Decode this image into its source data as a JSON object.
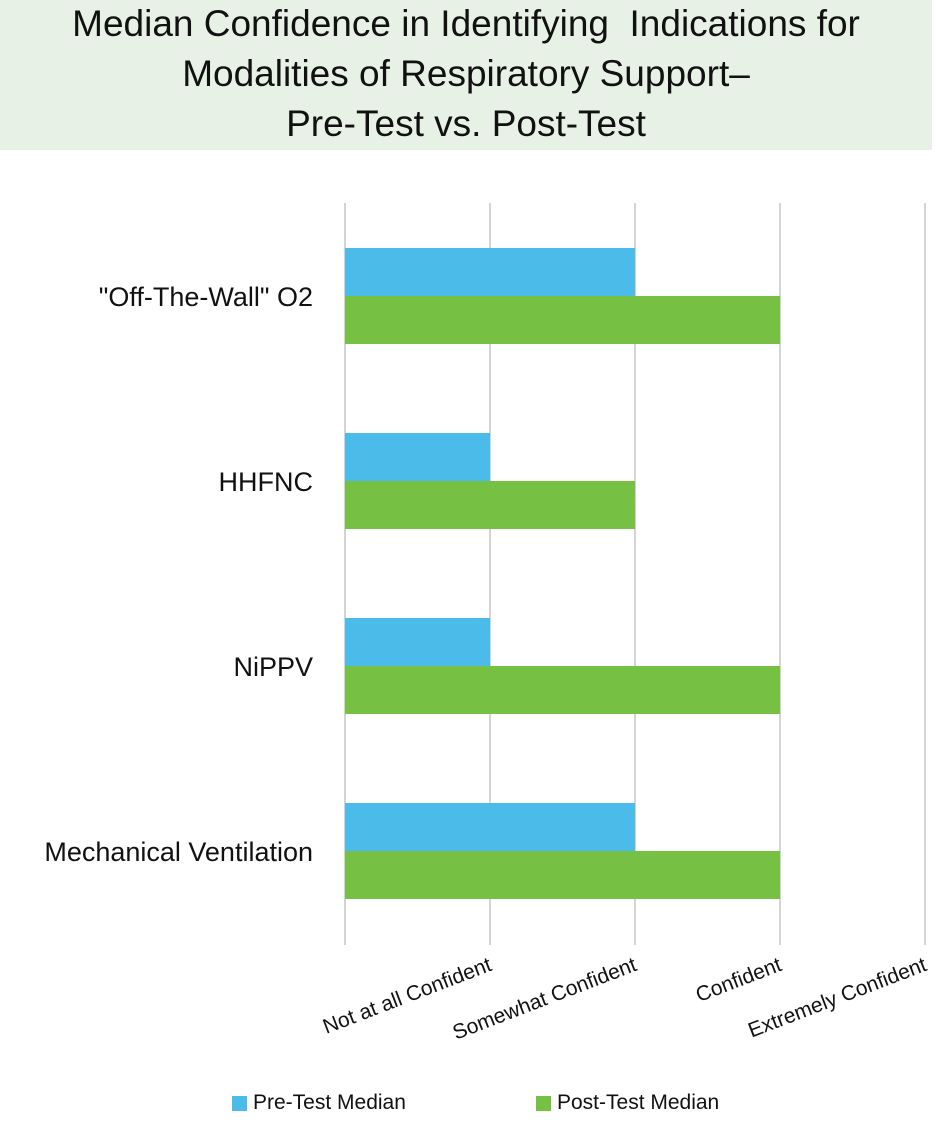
{
  "chart_data": {
    "type": "bar",
    "orientation": "horizontal",
    "title_lines": [
      "Median Confidence in Identifying  Indications for",
      "Modalities of Respiratory Support–",
      "Pre-Test vs. Post-Test"
    ],
    "categories": [
      "\"Off-The-Wall\" O2",
      "HHFNC",
      "NiPPV",
      "Mechanical Ventilation"
    ],
    "x_tick_labels": [
      "Not at all Confident",
      "Somewhat Confident",
      "Confident",
      "Extremely Confident"
    ],
    "xlim": [
      0,
      4
    ],
    "series": [
      {
        "name": "Pre-Test Median",
        "color": "#4bbbea",
        "values": [
          2,
          1,
          1,
          2
        ]
      },
      {
        "name": "Post-Test Median",
        "color": "#76c043",
        "values": [
          3,
          2,
          3,
          3
        ]
      }
    ],
    "grid": true,
    "legend_position": "bottom",
    "xlabel": "",
    "ylabel": ""
  }
}
